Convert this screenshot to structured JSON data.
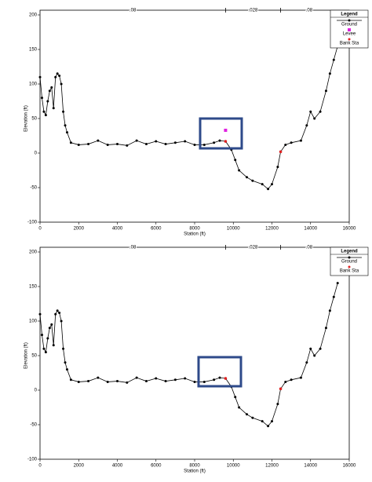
{
  "chart_data": [
    {
      "type": "line",
      "xlabel": "Station (ft)",
      "ylabel": "Elevation (ft)",
      "xlim": [
        0,
        16000
      ],
      "ylim": [
        -100,
        200
      ],
      "xticks": [
        0,
        2000,
        4000,
        6000,
        8000,
        10000,
        12000,
        14000,
        16000
      ],
      "yticks": [
        -100,
        -50,
        0,
        50,
        100,
        150,
        200
      ],
      "n_values": [
        ".08",
        ".028",
        ".08"
      ],
      "legend_title": "Legend",
      "series": [
        {
          "name": "Ground",
          "color": "#000000",
          "x": [
            0,
            100,
            200,
            300,
            400,
            500,
            600,
            700,
            800,
            900,
            1000,
            1100,
            1200,
            1300,
            1400,
            1600,
            2000,
            2500,
            3000,
            3500,
            4000,
            4500,
            5000,
            5500,
            6000,
            6500,
            7000,
            7500,
            8000,
            8500,
            9000,
            9300,
            9600,
            9900,
            10100,
            10300,
            10700,
            11000,
            11500,
            11800,
            12000,
            12300,
            12450,
            12700,
            13000,
            13500,
            13800,
            14000,
            14200,
            14500,
            14800,
            15000,
            15200,
            15400
          ],
          "values": [
            110,
            80,
            60,
            55,
            75,
            90,
            95,
            65,
            110,
            115,
            112,
            100,
            60,
            40,
            30,
            15,
            12,
            13,
            18,
            12,
            13,
            11,
            18,
            13,
            17,
            13,
            15,
            17,
            12,
            12,
            15,
            18,
            17,
            5,
            -10,
            -25,
            -35,
            -40,
            -45,
            -52,
            -45,
            -20,
            2,
            12,
            15,
            18,
            40,
            60,
            50,
            60,
            90,
            115,
            135,
            155
          ]
        },
        {
          "name": "Levee",
          "color": "#e020e0",
          "x": [
            9600
          ],
          "values": [
            33
          ]
        },
        {
          "name": "Bank Sta",
          "color": "#e02020",
          "x": [
            9600,
            12450
          ],
          "values": [
            17,
            2
          ]
        }
      ]
    },
    {
      "type": "line",
      "xlabel": "Station (ft)",
      "ylabel": "Elevation (ft)",
      "xlim": [
        0,
        16000
      ],
      "ylim": [
        -100,
        200
      ],
      "xticks": [
        0,
        2000,
        4000,
        6000,
        8000,
        10000,
        12000,
        14000,
        16000
      ],
      "yticks": [
        -100,
        -50,
        0,
        50,
        100,
        150,
        200
      ],
      "n_values": [
        ".08",
        ".028",
        ".08"
      ],
      "legend_title": "Legend",
      "series": [
        {
          "name": "Ground",
          "color": "#000000",
          "x": [
            0,
            100,
            200,
            300,
            400,
            500,
            600,
            700,
            800,
            900,
            1000,
            1100,
            1200,
            1300,
            1400,
            1600,
            2000,
            2500,
            3000,
            3500,
            4000,
            4500,
            5000,
            5500,
            6000,
            6500,
            7000,
            7500,
            8000,
            8500,
            9000,
            9300,
            9600,
            9900,
            10100,
            10300,
            10700,
            11000,
            11500,
            11800,
            12000,
            12300,
            12450,
            12700,
            13000,
            13500,
            13800,
            14000,
            14200,
            14500,
            14800,
            15000,
            15200,
            15400
          ],
          "values": [
            110,
            80,
            60,
            55,
            75,
            90,
            95,
            65,
            110,
            115,
            112,
            100,
            60,
            40,
            30,
            15,
            12,
            13,
            18,
            12,
            13,
            11,
            18,
            13,
            17,
            13,
            15,
            17,
            12,
            12,
            15,
            18,
            17,
            5,
            -10,
            -25,
            -35,
            -40,
            -45,
            -52,
            -45,
            -20,
            2,
            12,
            15,
            18,
            40,
            60,
            50,
            60,
            90,
            115,
            135,
            155
          ]
        },
        {
          "name": "Bank Sta",
          "color": "#e02020",
          "x": [
            9600,
            12450
          ],
          "values": [
            17,
            2
          ]
        }
      ]
    }
  ]
}
